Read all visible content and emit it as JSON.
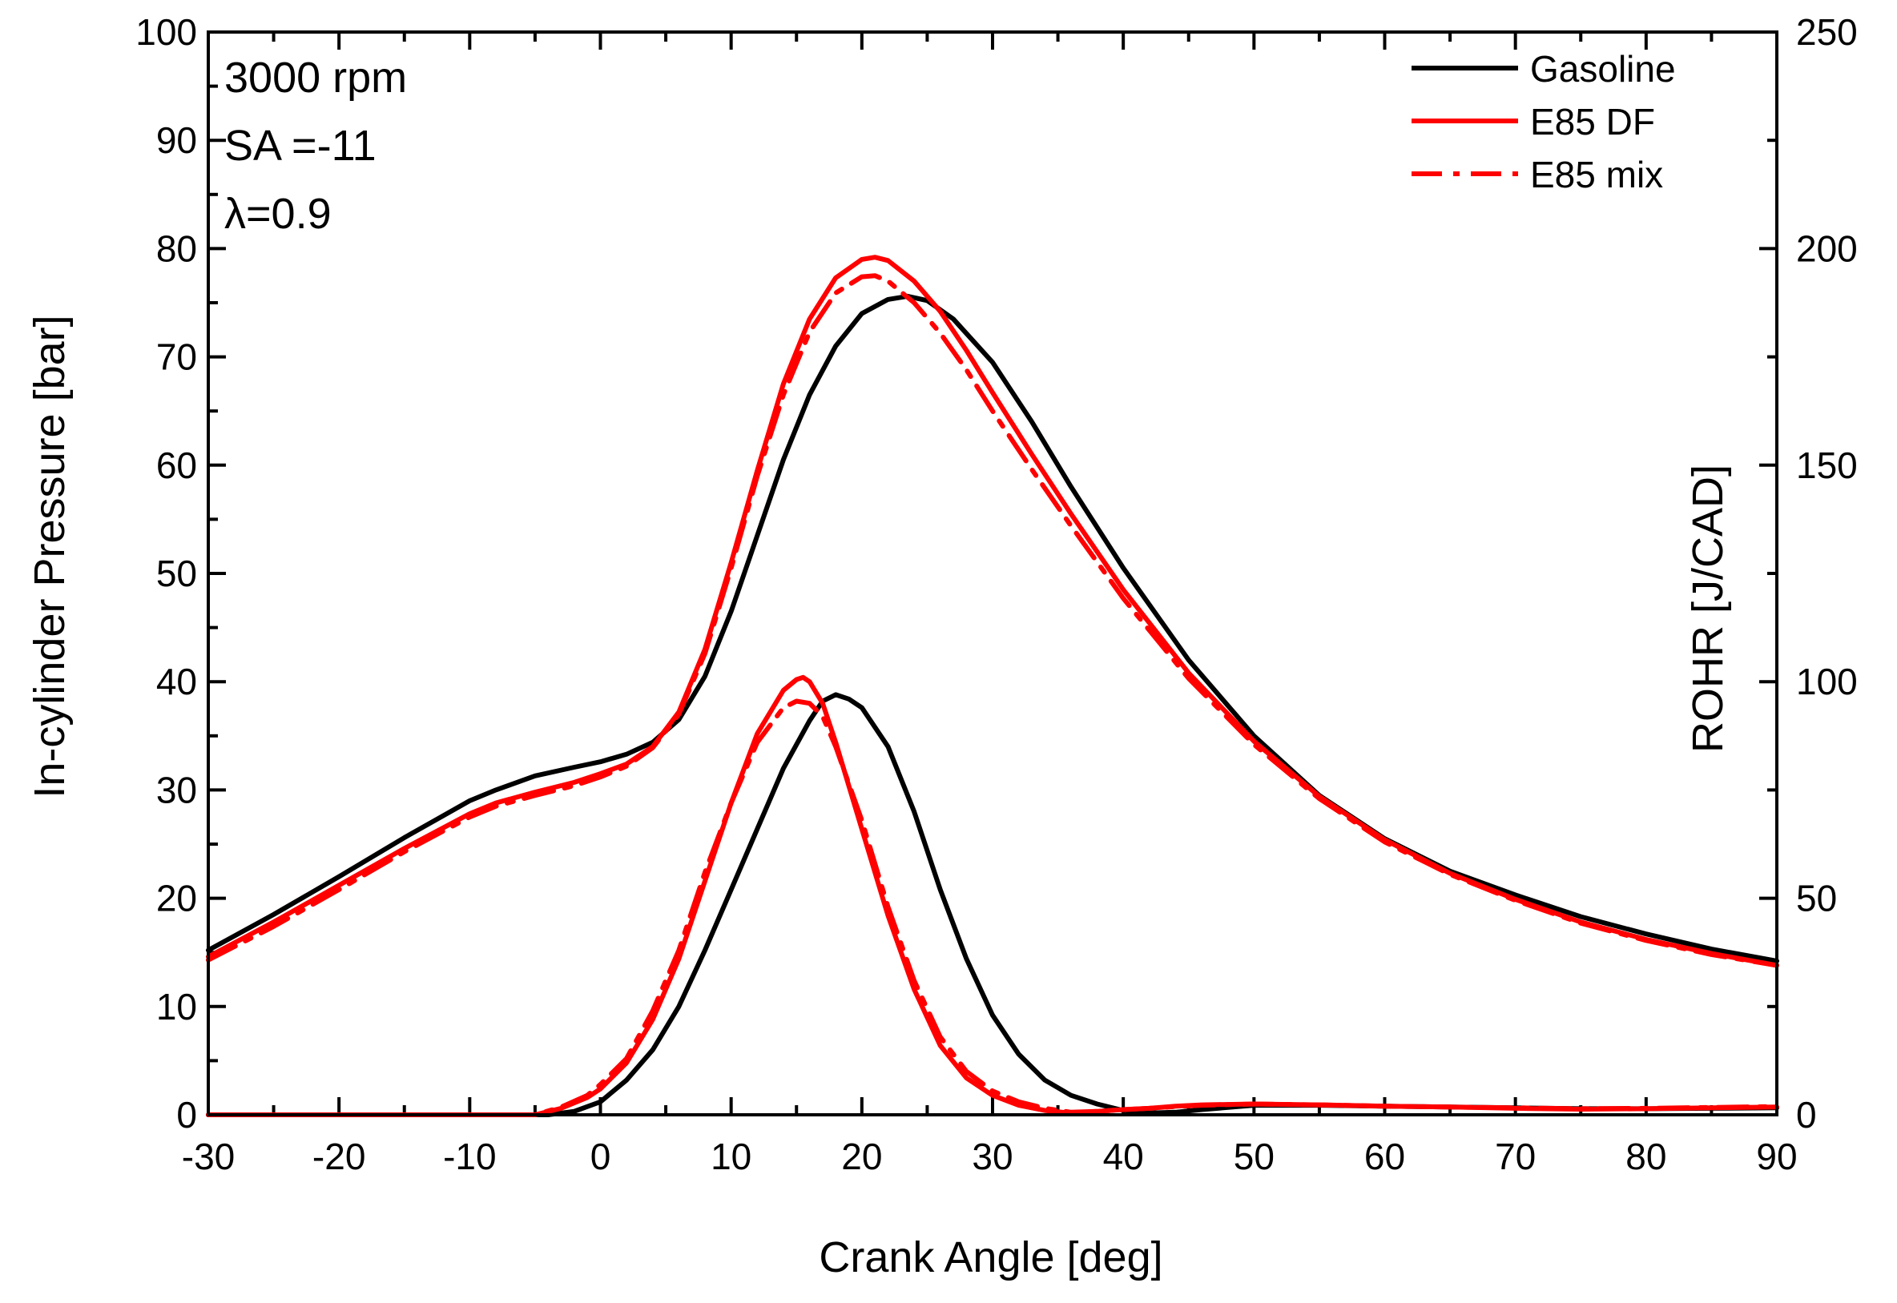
{
  "chart_data": {
    "type": "line",
    "title": "",
    "xlabel": "Crank Angle [deg]",
    "ylabel_left": "In-cylinder Pressure [bar]",
    "ylabel_right": "ROHR [J/CAD]",
    "xlim": [
      -30,
      90
    ],
    "ylim_left": [
      0,
      100
    ],
    "ylim_right": [
      0,
      250
    ],
    "x_ticks": [
      -30,
      -20,
      -10,
      0,
      10,
      20,
      30,
      40,
      50,
      60,
      70,
      80,
      90
    ],
    "x_tick_labels": [
      "-30",
      "-20",
      "-10",
      "0",
      "10",
      "20",
      "30",
      "40",
      "50",
      "60",
      "70",
      "80",
      "90"
    ],
    "y_left_ticks": [
      0,
      10,
      20,
      30,
      40,
      50,
      60,
      70,
      80,
      90,
      100
    ],
    "y_left_tick_labels": [
      "0",
      "10",
      "20",
      "30",
      "40",
      "50",
      "60",
      "70",
      "80",
      "90",
      "100"
    ],
    "y_right_ticks": [
      0,
      50,
      100,
      150,
      200,
      250
    ],
    "y_right_tick_labels": [
      "0",
      "50",
      "100",
      "150",
      "200",
      "250"
    ],
    "grid": false,
    "legend_position": "top-right",
    "annotations": [
      "3000 rpm",
      "SA =-11",
      "λ=0.9"
    ],
    "series": [
      {
        "name": "Gasoline",
        "legend": true,
        "color": "#000000",
        "dash": "solid",
        "axis": "left",
        "x": [
          -30,
          -25,
          -20,
          -15,
          -10,
          -8,
          -5,
          -2,
          0,
          2,
          4,
          6,
          8,
          10,
          12,
          14,
          16,
          18,
          20,
          22,
          23.5,
          25,
          27,
          30,
          33,
          36,
          40,
          45,
          50,
          55,
          60,
          65,
          70,
          75,
          80,
          85,
          90
        ],
        "y": [
          15.2,
          18.5,
          22.0,
          25.6,
          29.0,
          30.0,
          31.3,
          32.1,
          32.6,
          33.3,
          34.4,
          36.5,
          40.5,
          46.5,
          53.5,
          60.5,
          66.5,
          71.0,
          74.0,
          75.3,
          75.6,
          75.2,
          73.5,
          69.5,
          64.0,
          58.0,
          50.5,
          42.0,
          35.0,
          29.5,
          25.5,
          22.5,
          20.3,
          18.3,
          16.7,
          15.3,
          14.2
        ]
      },
      {
        "name": "E85 DF",
        "legend": true,
        "color": "#ff0000",
        "dash": "solid",
        "axis": "left",
        "x": [
          -30,
          -25,
          -20,
          -15,
          -10,
          -8,
          -5,
          -2,
          0,
          2,
          4,
          6,
          8,
          10,
          12,
          14,
          16,
          18,
          20,
          21,
          22,
          24,
          26,
          28,
          30,
          33,
          36,
          40,
          45,
          50,
          55,
          60,
          65,
          70,
          75,
          80,
          85,
          90
        ],
        "y": [
          14.6,
          17.8,
          21.2,
          24.6,
          27.8,
          28.8,
          29.8,
          30.7,
          31.5,
          32.4,
          34.0,
          37.2,
          43.0,
          51.0,
          59.5,
          67.5,
          73.5,
          77.3,
          79.0,
          79.2,
          78.9,
          77.0,
          74.2,
          70.6,
          66.7,
          61.0,
          55.5,
          48.5,
          40.8,
          34.5,
          29.4,
          25.4,
          22.3,
          19.9,
          17.8,
          16.2,
          14.9,
          13.8
        ]
      },
      {
        "name": "E85 mix",
        "legend": true,
        "color": "#ff0000",
        "dash": "dashdot",
        "axis": "left",
        "x": [
          -30,
          -25,
          -20,
          -15,
          -10,
          -8,
          -5,
          -2,
          0,
          2,
          4,
          6,
          8,
          10,
          12,
          14,
          16,
          18,
          20,
          21,
          22,
          24,
          26,
          28,
          30,
          33,
          36,
          40,
          45,
          50,
          55,
          60,
          65,
          70,
          75,
          80,
          85,
          90
        ],
        "y": [
          14.3,
          17.4,
          20.8,
          24.3,
          27.5,
          28.5,
          29.5,
          30.4,
          31.2,
          32.2,
          33.9,
          37.0,
          42.6,
          50.5,
          59.0,
          66.5,
          72.3,
          75.9,
          77.4,
          77.5,
          77.0,
          75.0,
          72.2,
          68.8,
          65.0,
          59.6,
          54.4,
          47.7,
          40.3,
          34.2,
          29.2,
          25.2,
          22.2,
          19.8,
          17.7,
          16.1,
          14.8,
          13.8
        ]
      },
      {
        "name": "Gasoline ROHR",
        "legend": false,
        "color": "#000000",
        "dash": "solid",
        "axis": "right",
        "x": [
          -30,
          -20,
          -10,
          -4,
          -2,
          0,
          2,
          4,
          6,
          8,
          10,
          12,
          14,
          16,
          17,
          18,
          19,
          20,
          22,
          24,
          26,
          28,
          30,
          32,
          34,
          36,
          38,
          40,
          42,
          44,
          46,
          50,
          55,
          60,
          65,
          70,
          75,
          80,
          85,
          90
        ],
        "y": [
          0,
          0,
          0,
          0,
          0.8,
          3,
          8,
          15,
          25,
          38,
          52,
          66,
          80,
          91,
          95.5,
          97,
          96,
          94,
          85,
          70,
          52,
          36,
          23,
          14,
          8,
          4.5,
          2.5,
          1,
          0.4,
          0.6,
          1.2,
          2.2,
          2.2,
          2,
          1.8,
          1.6,
          1.4,
          1.4,
          1.5,
          1.6
        ]
      },
      {
        "name": "E85 DF ROHR",
        "legend": false,
        "color": "#ff0000",
        "dash": "solid",
        "axis": "right",
        "x": [
          -30,
          -20,
          -10,
          -5,
          -3,
          -1,
          0,
          2,
          4,
          6,
          8,
          10,
          12,
          14,
          15,
          15.5,
          16,
          17,
          18,
          20,
          22,
          24,
          26,
          28,
          30,
          32,
          34,
          36,
          38,
          40,
          42,
          44,
          46,
          50,
          55,
          60,
          65,
          70,
          75,
          80,
          85,
          90
        ],
        "y": [
          0,
          0,
          0,
          0,
          1.5,
          4,
          6,
          12,
          22,
          36,
          54,
          72,
          88,
          98,
          100.5,
          101,
          100,
          95,
          86,
          66,
          46,
          29,
          16,
          8.5,
          4.5,
          2.2,
          1,
          0.4,
          0.8,
          1.2,
          1.5,
          2,
          2.3,
          2.5,
          2.3,
          2,
          1.8,
          1.5,
          1.3,
          1.4,
          1.6,
          1.8
        ]
      },
      {
        "name": "E85 mix ROHR",
        "legend": false,
        "color": "#ff0000",
        "dash": "dashdot",
        "axis": "right",
        "x": [
          -30,
          -20,
          -10,
          -5,
          -3,
          -1,
          0,
          2,
          4,
          6,
          8,
          10,
          12,
          14,
          15,
          16,
          17,
          18,
          20,
          22,
          24,
          26,
          28,
          30,
          32,
          34,
          36,
          38,
          40,
          42,
          44,
          46,
          50,
          55,
          60,
          65,
          70,
          75,
          80,
          85,
          90
        ],
        "y": [
          0,
          0,
          0,
          0,
          1.8,
          4.5,
          7,
          13,
          24,
          38,
          56,
          72,
          86,
          94,
          95.5,
          95,
          92,
          85,
          68,
          48,
          31,
          18,
          10,
          5.5,
          3,
          1.5,
          0.6,
          0.8,
          1.2,
          1.5,
          1.9,
          2.2,
          2.5,
          2.3,
          2,
          1.8,
          1.6,
          1.4,
          1.5,
          1.7,
          1.9
        ]
      }
    ]
  }
}
